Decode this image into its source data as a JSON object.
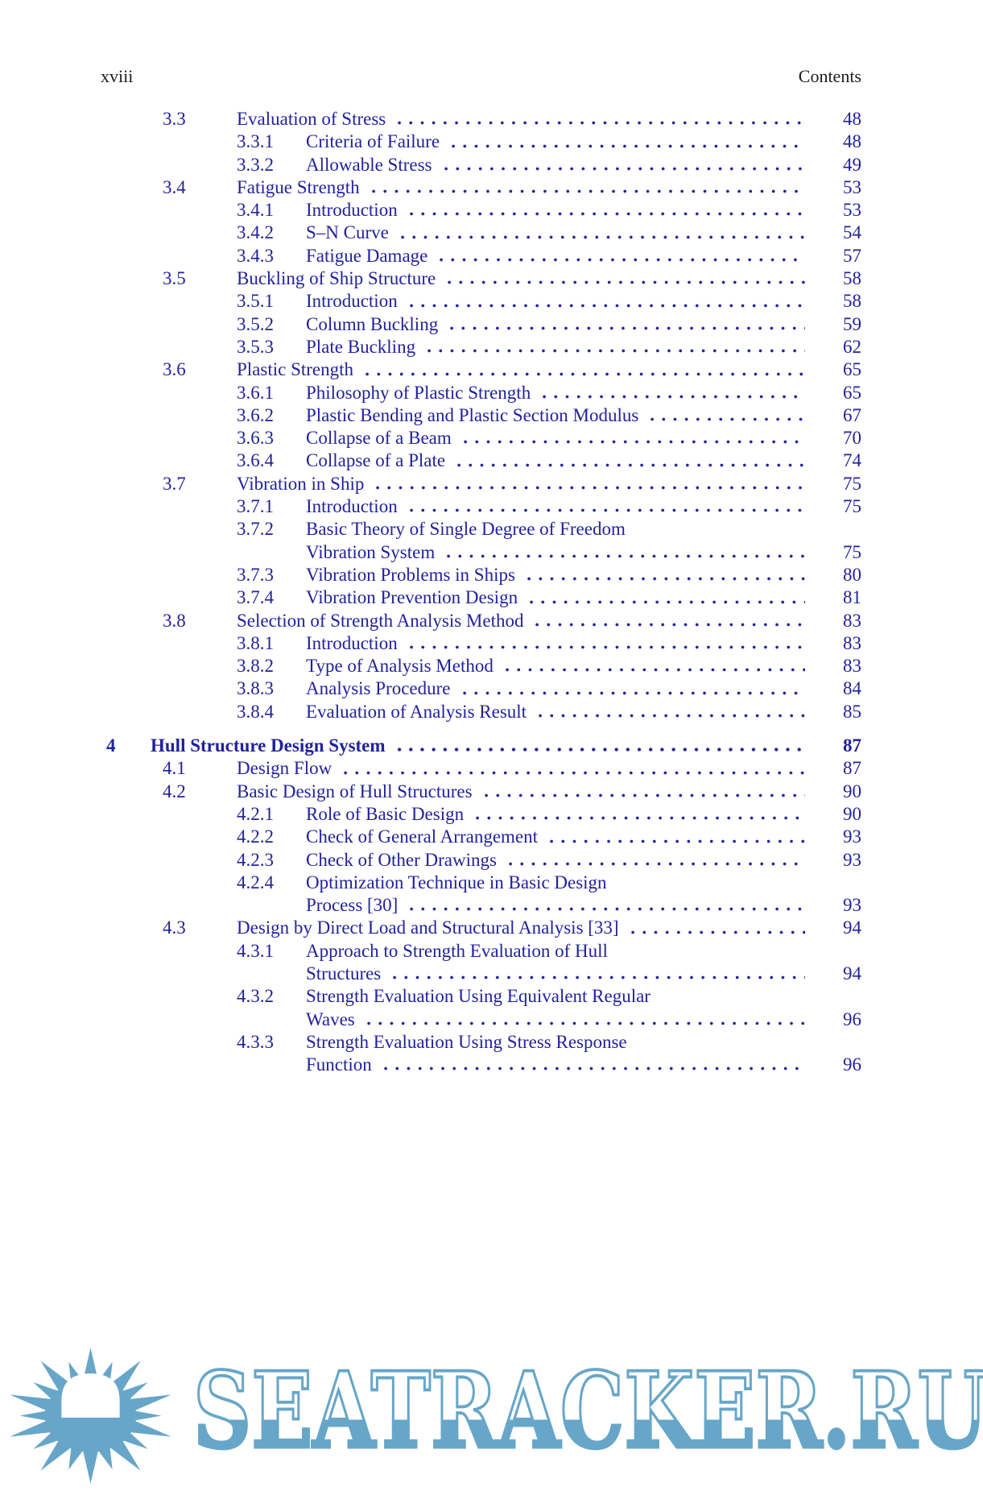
{
  "page": {
    "header_left": "xviii",
    "header_right": "Contents"
  },
  "colors": {
    "toc-blue": "#22229c",
    "header-black": "#1c1c1c",
    "wm-blue": "#67a6c8"
  },
  "toc": {
    "entries": [
      {
        "level": "section",
        "num": "3.3",
        "lines": [
          "Evaluation of Stress"
        ],
        "page": "48"
      },
      {
        "level": "subsection",
        "num": "3.3.1",
        "lines": [
          "Criteria of Failure"
        ],
        "page": "48"
      },
      {
        "level": "subsection",
        "num": "3.3.2",
        "lines": [
          "Allowable Stress"
        ],
        "page": "49"
      },
      {
        "level": "section",
        "num": "3.4",
        "lines": [
          "Fatigue Strength"
        ],
        "page": "53"
      },
      {
        "level": "subsection",
        "num": "3.4.1",
        "lines": [
          "Introduction"
        ],
        "page": "53"
      },
      {
        "level": "subsection",
        "num": "3.4.2",
        "lines": [
          "S–N Curve"
        ],
        "page": "54"
      },
      {
        "level": "subsection",
        "num": "3.4.3",
        "lines": [
          "Fatigue Damage"
        ],
        "page": "57"
      },
      {
        "level": "section",
        "num": "3.5",
        "lines": [
          "Buckling of Ship Structure"
        ],
        "page": "58"
      },
      {
        "level": "subsection",
        "num": "3.5.1",
        "lines": [
          "Introduction"
        ],
        "page": "58"
      },
      {
        "level": "subsection",
        "num": "3.5.2",
        "lines": [
          "Column Buckling"
        ],
        "page": "59"
      },
      {
        "level": "subsection",
        "num": "3.5.3",
        "lines": [
          "Plate Buckling"
        ],
        "page": "62"
      },
      {
        "level": "section",
        "num": "3.6",
        "lines": [
          "Plastic Strength"
        ],
        "page": "65"
      },
      {
        "level": "subsection",
        "num": "3.6.1",
        "lines": [
          "Philosophy of Plastic Strength"
        ],
        "page": "65"
      },
      {
        "level": "subsection",
        "num": "3.6.2",
        "lines": [
          "Plastic Bending and Plastic Section Modulus"
        ],
        "page": "67"
      },
      {
        "level": "subsection",
        "num": "3.6.3",
        "lines": [
          "Collapse of a Beam"
        ],
        "page": "70"
      },
      {
        "level": "subsection",
        "num": "3.6.4",
        "lines": [
          "Collapse of a Plate"
        ],
        "page": "74"
      },
      {
        "level": "section",
        "num": "3.7",
        "lines": [
          "Vibration in Ship"
        ],
        "page": "75"
      },
      {
        "level": "subsection",
        "num": "3.7.1",
        "lines": [
          "Introduction"
        ],
        "page": "75"
      },
      {
        "level": "subsection",
        "num": "3.7.2",
        "lines": [
          "Basic Theory of Single Degree of Freedom",
          "Vibration System"
        ],
        "page": "75"
      },
      {
        "level": "subsection",
        "num": "3.7.3",
        "lines": [
          "Vibration Problems in Ships"
        ],
        "page": "80"
      },
      {
        "level": "subsection",
        "num": "3.7.4",
        "lines": [
          "Vibration Prevention Design"
        ],
        "page": "81"
      },
      {
        "level": "section",
        "num": "3.8",
        "lines": [
          "Selection of Strength Analysis Method"
        ],
        "page": "83"
      },
      {
        "level": "subsection",
        "num": "3.8.1",
        "lines": [
          "Introduction"
        ],
        "page": "83"
      },
      {
        "level": "subsection",
        "num": "3.8.2",
        "lines": [
          "Type of Analysis Method"
        ],
        "page": "83"
      },
      {
        "level": "subsection",
        "num": "3.8.3",
        "lines": [
          "Analysis Procedure"
        ],
        "page": "84"
      },
      {
        "level": "subsection",
        "num": "3.8.4",
        "lines": [
          "Evaluation of Analysis Result"
        ],
        "page": "85"
      },
      {
        "level": "chapter",
        "num": "4",
        "lines": [
          "Hull Structure Design System"
        ],
        "page": "87"
      },
      {
        "level": "section",
        "num": "4.1",
        "lines": [
          "Design Flow"
        ],
        "page": "87"
      },
      {
        "level": "section",
        "num": "4.2",
        "lines": [
          "Basic Design of Hull Structures"
        ],
        "page": "90"
      },
      {
        "level": "subsection",
        "num": "4.2.1",
        "lines": [
          "Role of Basic Design"
        ],
        "page": "90"
      },
      {
        "level": "subsection",
        "num": "4.2.2",
        "lines": [
          "Check of General Arrangement"
        ],
        "page": "93"
      },
      {
        "level": "subsection",
        "num": "4.2.3",
        "lines": [
          "Check of Other Drawings"
        ],
        "page": "93"
      },
      {
        "level": "subsection",
        "num": "4.2.4",
        "lines": [
          "Optimization Technique in Basic Design",
          "Process [30]"
        ],
        "page": "93"
      },
      {
        "level": "section",
        "num": "4.3",
        "lines": [
          "Design by Direct Load and Structural Analysis [33]"
        ],
        "page": "94"
      },
      {
        "level": "subsection",
        "num": "4.3.1",
        "lines": [
          "Approach to Strength Evaluation of Hull",
          "Structures"
        ],
        "page": "94"
      },
      {
        "level": "subsection",
        "num": "4.3.2",
        "lines": [
          "Strength Evaluation Using Equivalent Regular",
          "Waves"
        ],
        "page": "96"
      },
      {
        "level": "subsection",
        "num": "4.3.3",
        "lines": [
          "Strength Evaluation Using Stress Response",
          "Function"
        ],
        "page": "96"
      }
    ]
  },
  "watermark": {
    "text": "SEATRACKER.RU"
  }
}
